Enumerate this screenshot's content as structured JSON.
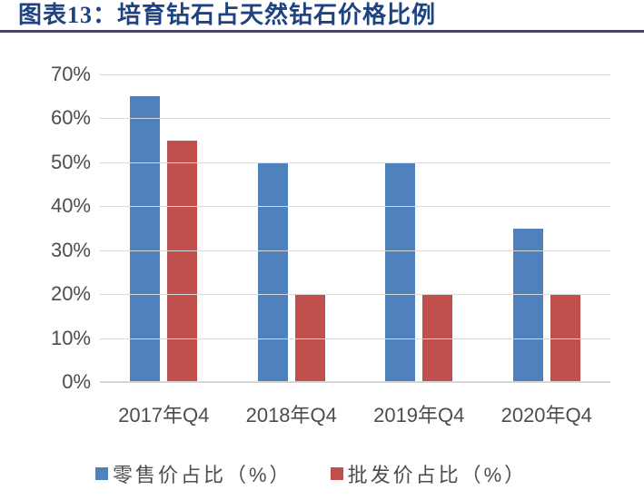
{
  "figure": {
    "title": "图表13：培育钻石占天然钻石价格比例"
  },
  "chart_data": {
    "type": "bar",
    "categories": [
      "2017年Q4",
      "2018年Q4",
      "2019年Q4",
      "2020年Q4"
    ],
    "series": [
      {
        "name": "零售价占比（%）",
        "color": "#4F81BD",
        "values": [
          65,
          50,
          50,
          35
        ]
      },
      {
        "name": "批发价占比（%）",
        "color": "#C0504D",
        "values": [
          55,
          20,
          20,
          20
        ]
      }
    ],
    "title": "",
    "xlabel": "",
    "ylabel": "",
    "ylim": [
      0,
      70
    ],
    "ytick_step": 10,
    "ytick_labels": [
      "0%",
      "10%",
      "20%",
      "30%",
      "40%",
      "50%",
      "60%",
      "70%"
    ],
    "grid": true,
    "legend_position": "bottom"
  },
  "colors": {
    "title_text": "#1F4380",
    "title_rule": "#3D4289",
    "axis_text": "#4D4D4D",
    "gridline": "#D9D9D9",
    "background": "#FFFFFF"
  }
}
